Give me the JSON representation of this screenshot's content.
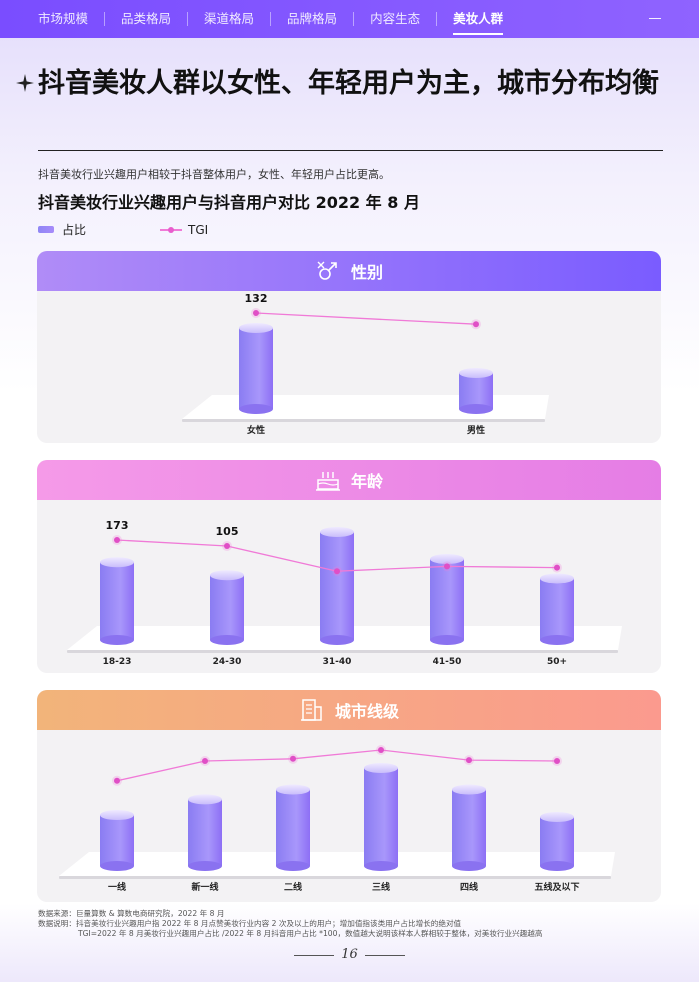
{
  "nav": {
    "items": [
      "市场规模",
      "品类格局",
      "渠道格局",
      "品牌格局",
      "内容生态",
      "美妆人群"
    ],
    "active_index": 5
  },
  "headline": "抖音美妆人群以女性、年轻用户为主，城市分布均衡",
  "description": "抖音美妆行业兴趣用户相较于抖音整体用户，女性、年轻用户占比更高。",
  "subtitle": "抖音美妆行业兴趣用户与抖音用户对比 2022 年 8 月",
  "legend": {
    "bar": "占比",
    "line": "TGI"
  },
  "colors": {
    "accent": "#7a4dff",
    "line": "#f07ad7",
    "bar": "#9b8cf5"
  },
  "chart_data": [
    {
      "type": "bar",
      "title": "性别",
      "icon": "gender-icon",
      "categories": [
        "女性",
        "男性"
      ],
      "bar_values": [
        0.9,
        0.4
      ],
      "tgi_values": [
        1.0,
        0.72
      ],
      "tgi_labels": [
        "132",
        ""
      ],
      "header_color": [
        "#b08cf7",
        "#7a5cff"
      ]
    },
    {
      "type": "bar",
      "title": "年龄",
      "icon": "cake-icon",
      "categories": [
        "18-23",
        "24-30",
        "31-40",
        "41-50",
        "50+"
      ],
      "bar_values": [
        0.72,
        0.6,
        1.0,
        0.75,
        0.57
      ],
      "tgi_values": [
        1.0,
        0.9,
        0.48,
        0.56,
        0.54
      ],
      "tgi_labels": [
        "173",
        "105",
        "",
        "",
        ""
      ],
      "header_color": [
        "#f59ae8",
        "#e57de5"
      ]
    },
    {
      "type": "bar",
      "title": "城市线级",
      "icon": "building-icon",
      "categories": [
        "一线",
        "新一线",
        "二线",
        "三线",
        "四线",
        "五线及以下"
      ],
      "bar_values": [
        0.52,
        0.68,
        0.78,
        1.0,
        0.78,
        0.5
      ],
      "tgi_values": [
        0.3,
        0.75,
        0.8,
        1.0,
        0.77,
        0.75
      ],
      "tgi_labels": [
        "",
        "",
        "",
        "",
        "",
        ""
      ],
      "header_color": [
        "#f2b47a",
        "#fb9a8e"
      ]
    }
  ],
  "footnote": {
    "source": "数据来源：巨量算数 & 算数电商研究院，2022 年 8 月",
    "note1": "数据说明：抖音美妆行业兴趣用户指 2022 年 8 月点赞美妆行业内容 2 次及以上的用户；增加值指该类用户占比增长的绝对值",
    "note2": "TGI=2022 年 8 月美妆行业兴趣用户占比 /2022 年 8 月抖音用户占比 *100，数值越大说明该样本人群相较于整体，对美妆行业兴趣越高"
  },
  "page_number": "16"
}
